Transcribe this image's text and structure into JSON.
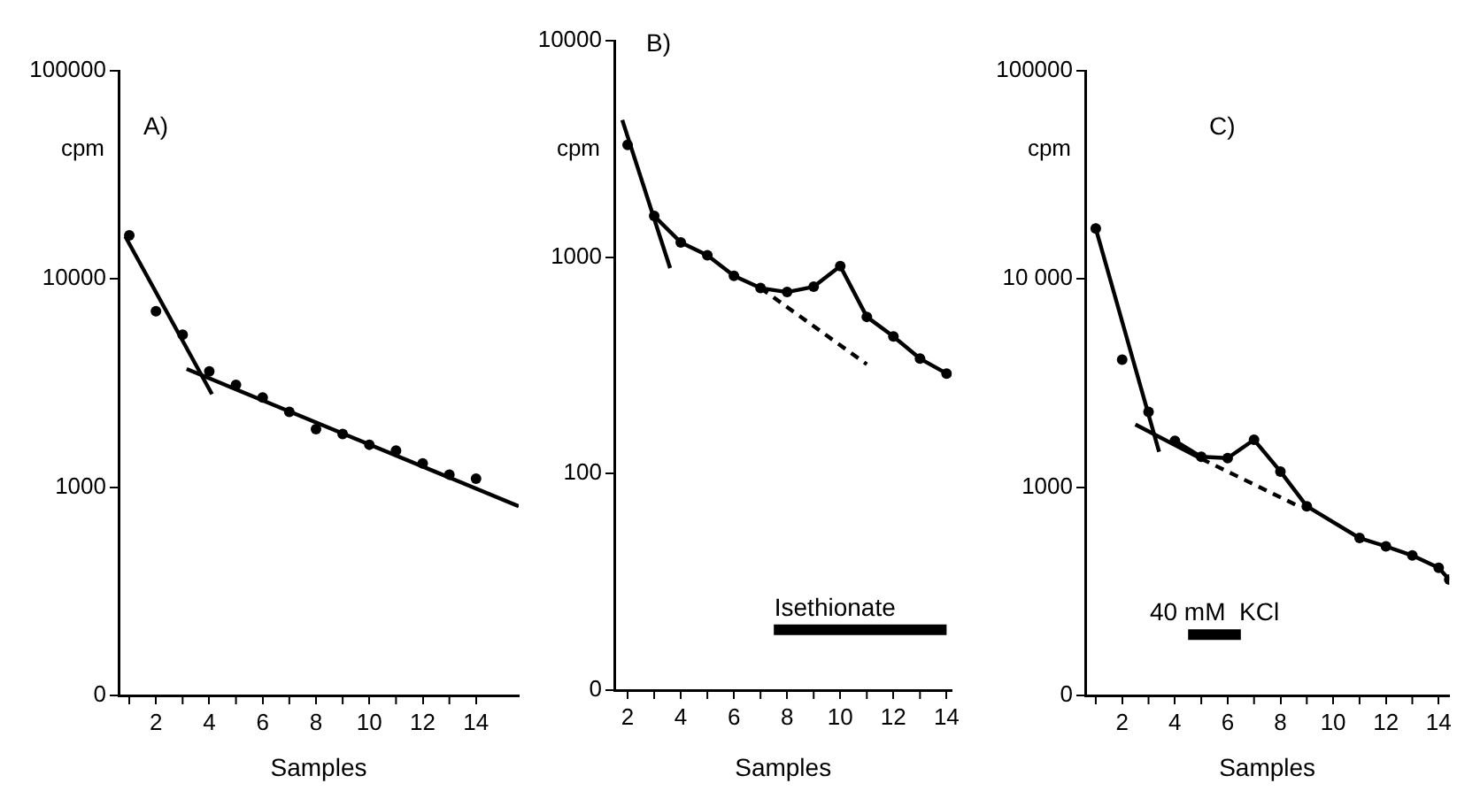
{
  "chart_data": [
    {
      "type": "scatter",
      "title": "A)",
      "xlabel": "Samples",
      "ylabel": "cpm",
      "log": "y",
      "grid": false,
      "legend": false,
      "marker": "circle",
      "xlim": [
        0.6,
        15.6
      ],
      "xticks": [
        2,
        4,
        6,
        8,
        10,
        12,
        14
      ],
      "ylim": [
        0,
        100000
      ],
      "yticks": [
        0,
        1000,
        10000,
        100000
      ],
      "series": [
        {
          "color": "#000000",
          "x": [
            1,
            2,
            3,
            4,
            5,
            6,
            7,
            8,
            9,
            10,
            11,
            12,
            13,
            14
          ],
          "values": [
            16200,
            7000,
            5400,
            3600,
            3100,
            2700,
            2300,
            1900,
            1800,
            1600,
            1500,
            1300,
            1150,
            1100
          ]
        },
        {
          "type": "line",
          "color": "#000000",
          "marker": "none",
          "x": [
            0.85,
            4.1
          ],
          "values": [
            16000,
            2800
          ]
        },
        {
          "type": "line",
          "color": "#000000",
          "marker": "none",
          "x": [
            3.15,
            15.6
          ],
          "values": [
            3700,
            810
          ]
        }
      ]
    },
    {
      "type": "line",
      "title": "B)",
      "xlabel": "Samples",
      "ylabel": "cpm",
      "log": "y",
      "grid": false,
      "legend": false,
      "marker": "circle",
      "xlim": [
        1.5,
        14.2
      ],
      "xticks": [
        2,
        4,
        6,
        8,
        10,
        12,
        14
      ],
      "ylim": [
        0,
        10000
      ],
      "yticks": [
        0,
        100,
        1000,
        10000
      ],
      "annotations": [
        {
          "text": "Isethionate",
          "x": 9.8,
          "y": 19
        }
      ],
      "series": [
        {
          "type": "scatter",
          "color": "#000000",
          "x": [
            2
          ],
          "values": [
            3300
          ]
        },
        {
          "color": "#000000",
          "marker": "none",
          "x": [
            7.5,
            14
          ],
          "values": [
            19,
            19
          ]
        },
        {
          "color": "#000000",
          "x": [
            3,
            4,
            5,
            6,
            7,
            8,
            9,
            10,
            11,
            12,
            13,
            14
          ],
          "values": [
            1550,
            1170,
            1020,
            820,
            720,
            690,
            730,
            910,
            530,
            430,
            340,
            290
          ]
        },
        {
          "type": "line",
          "color": "#000000",
          "marker": "none",
          "x": [
            1.8,
            3.6
          ],
          "values": [
            4300,
            890
          ]
        },
        {
          "type": "line",
          "color": "#000000",
          "marker": "none",
          "line_style": "dashed",
          "x": [
            7,
            11
          ],
          "values": [
            720,
            320
          ]
        }
      ]
    },
    {
      "type": "line",
      "title": "C)",
      "xlabel": "Samples",
      "ylabel": "cpm",
      "log": "y",
      "grid": false,
      "legend": false,
      "marker": "circle",
      "xlim": [
        0.6,
        14.4
      ],
      "xticks": [
        2,
        4,
        6,
        8,
        10,
        12,
        14
      ],
      "ylim": [
        0,
        100000
      ],
      "yticks": [
        0,
        1000,
        {
          "value": 10000,
          "label": "10 000"
        },
        100000
      ],
      "annotations": [
        {
          "text": "40 mM  KCl",
          "x": 5.5,
          "y": 196
        }
      ],
      "series": [
        {
          "type": "scatter",
          "color": "#000000",
          "x": [
            1,
            2,
            3
          ],
          "values": [
            17500,
            4100,
            2300
          ]
        },
        {
          "color": "#000000",
          "marker": "none",
          "x": [
            4.5,
            6.5
          ],
          "values": [
            196,
            196
          ]
        },
        {
          "color": "#000000",
          "x": [
            4,
            5,
            6,
            7,
            8,
            9,
            11,
            12,
            13,
            14,
            14.4
          ],
          "values": [
            1670,
            1400,
            1380,
            1690,
            1190,
            810,
            570,
            520,
            470,
            410,
            360
          ],
          "marker": "circle"
        },
        {
          "type": "line",
          "color": "#000000",
          "marker": "none",
          "x": [
            0.95,
            3.4
          ],
          "values": [
            18400,
            1480
          ]
        },
        {
          "type": "line",
          "color": "#000000",
          "marker": "none",
          "x": [
            2.5,
            5
          ],
          "values": [
            2000,
            1370
          ]
        },
        {
          "type": "line",
          "color": "#000000",
          "marker": "none",
          "line_style": "dashed",
          "x": [
            5,
            8.7
          ],
          "values": [
            1370,
            810
          ]
        }
      ]
    }
  ]
}
